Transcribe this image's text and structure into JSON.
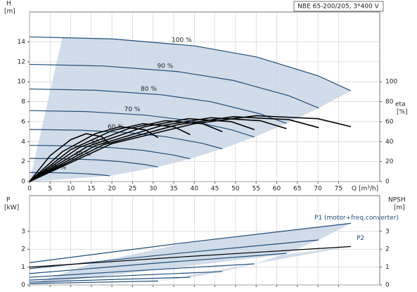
{
  "chart_data": [
    {
      "type": "line",
      "title": "NBE 65-200/205, 3*400 V",
      "x_label": "Q [m³/h]",
      "y_label": "H",
      "y_unit": "[m]",
      "y2_label": "eta",
      "y2_unit": "[%]",
      "xlim": [
        0,
        85
      ],
      "xticks": [
        0,
        5,
        10,
        15,
        20,
        25,
        30,
        35,
        40,
        45,
        50,
        55,
        60,
        65,
        70,
        75
      ],
      "ylim": [
        0,
        17
      ],
      "yticks": [
        0,
        2,
        4,
        6,
        8,
        10,
        12,
        14
      ],
      "y2lim": [
        0,
        170
      ],
      "y2ticks": [
        0,
        20,
        40,
        60,
        80,
        100
      ],
      "grid": true,
      "series": [
        {
          "name": "100 %",
          "color": "#1f4e79",
          "x": [
            0,
            20,
            40,
            55,
            70,
            78
          ],
          "values": [
            14.5,
            14.3,
            13.6,
            12.5,
            10.6,
            9.1
          ]
        },
        {
          "name": "90 %",
          "color": "#1f4e79",
          "x": [
            0,
            18,
            36,
            49.5,
            63,
            70.2
          ],
          "values": [
            11.75,
            11.58,
            11.02,
            10.13,
            8.59,
            7.37
          ]
        },
        {
          "name": "80 %",
          "color": "#1f4e79",
          "x": [
            0,
            16,
            32,
            44,
            56,
            62.4
          ],
          "values": [
            9.28,
            9.15,
            8.7,
            8.0,
            6.78,
            5.82
          ]
        },
        {
          "name": "70 %",
          "color": "#1f4e79",
          "x": [
            0,
            14,
            28,
            38.5,
            49,
            54.6
          ],
          "values": [
            7.11,
            7.01,
            6.66,
            6.13,
            5.19,
            4.46
          ]
        },
        {
          "name": "60 %",
          "color": "#1f4e79",
          "x": [
            0,
            12,
            24,
            33,
            42,
            46.8
          ],
          "values": [
            5.22,
            5.15,
            4.9,
            4.5,
            3.82,
            3.28
          ]
        },
        {
          "name": "50 %",
          "color": "#1f4e79",
          "x": [
            0,
            10,
            20,
            27.5,
            35,
            39
          ],
          "values": [
            3.63,
            3.58,
            3.4,
            3.13,
            2.65,
            2.28
          ]
        },
        {
          "name": "40 %",
          "color": "#1f4e79",
          "x": [
            0,
            8,
            16,
            22,
            28,
            31.2
          ],
          "values": [
            2.32,
            2.29,
            2.18,
            2.0,
            1.7,
            1.46
          ]
        },
        {
          "name": "25 %",
          "color": "#1f4e79",
          "x": [
            0,
            5,
            10,
            13.75,
            17.5,
            19.5
          ],
          "values": [
            0.91,
            0.89,
            0.85,
            0.78,
            0.66,
            0.57
          ]
        },
        {
          "axis": "y2",
          "color": "#000000",
          "x": [
            0,
            20,
            40,
            55,
            70,
            78
          ],
          "values": [
            0,
            38,
            58,
            66,
            63,
            55
          ]
        },
        {
          "axis": "y2",
          "color": "#000000",
          "x": [
            0,
            18,
            36,
            49.5,
            63,
            70.2
          ],
          "values": [
            0,
            37,
            57,
            65,
            62,
            54
          ]
        },
        {
          "axis": "y2",
          "color": "#000000",
          "x": [
            0,
            16,
            32,
            44,
            56,
            62.4
          ],
          "values": [
            0,
            36,
            56,
            64,
            61,
            53
          ]
        },
        {
          "axis": "y2",
          "color": "#000000",
          "x": [
            0,
            14,
            28,
            38.5,
            49,
            54.6
          ],
          "values": [
            0,
            35,
            55,
            63,
            60,
            52
          ]
        },
        {
          "axis": "y2",
          "color": "#000000",
          "x": [
            0,
            12,
            24,
            33,
            42,
            46.8
          ],
          "values": [
            0,
            34,
            53,
            61,
            58,
            50
          ]
        },
        {
          "axis": "y2",
          "color": "#000000",
          "x": [
            0,
            10,
            20,
            27.5,
            35,
            39
          ],
          "values": [
            0,
            32,
            51,
            58,
            55,
            47
          ]
        },
        {
          "axis": "y2",
          "color": "#000000",
          "x": [
            0,
            8,
            16,
            22,
            28,
            31.2
          ],
          "values": [
            0,
            30,
            48,
            55,
            52,
            44
          ]
        },
        {
          "axis": "y2",
          "color": "#000000",
          "x": [
            0,
            5,
            10,
            13.75,
            17.5,
            19.5
          ],
          "values": [
            0,
            26,
            42,
            48,
            45,
            38
          ]
        }
      ]
    },
    {
      "type": "line",
      "y_label": "P",
      "y_unit": "[kW]",
      "y2_label": "NPSH",
      "y2_unit": "[m]",
      "xlim": [
        0,
        85
      ],
      "xticks": [
        0,
        5,
        10,
        15,
        20,
        25,
        30,
        35,
        40,
        45,
        50,
        55,
        60,
        65,
        70,
        75
      ],
      "ylim": [
        0,
        5
      ],
      "yticks": [
        0,
        1,
        2,
        3
      ],
      "y2lim": [
        0,
        5
      ],
      "y2ticks": [
        0,
        1,
        2,
        3
      ],
      "grid": true,
      "series": [
        {
          "name": "P1 (motor+freq.converter)",
          "color": "#1f4e79",
          "x": [
            0,
            39,
            78
          ],
          "values": [
            1.25,
            2.4,
            3.45
          ]
        },
        {
          "color": "#1f4e79",
          "x": [
            0,
            35.1,
            70.2
          ],
          "values": [
            0.91,
            1.75,
            2.52
          ]
        },
        {
          "color": "#1f4e79",
          "x": [
            0,
            31.2,
            62.4
          ],
          "values": [
            0.64,
            1.23,
            1.77
          ]
        },
        {
          "color": "#1f4e79",
          "x": [
            0,
            27.3,
            54.6
          ],
          "values": [
            0.43,
            0.82,
            1.18
          ]
        },
        {
          "color": "#1f4e79",
          "x": [
            0,
            23.4,
            46.8
          ],
          "values": [
            0.27,
            0.52,
            0.75
          ]
        },
        {
          "color": "#1f4e79",
          "x": [
            0,
            19.5,
            39
          ],
          "values": [
            0.16,
            0.3,
            0.43
          ]
        },
        {
          "color": "#1f4e79",
          "x": [
            0,
            15.6,
            31.2
          ],
          "values": [
            0.08,
            0.15,
            0.22
          ]
        },
        {
          "name": "P2",
          "color": "#000000",
          "x": [
            0,
            39,
            78
          ],
          "values": [
            1.0,
            1.6,
            2.15
          ]
        }
      ]
    }
  ]
}
